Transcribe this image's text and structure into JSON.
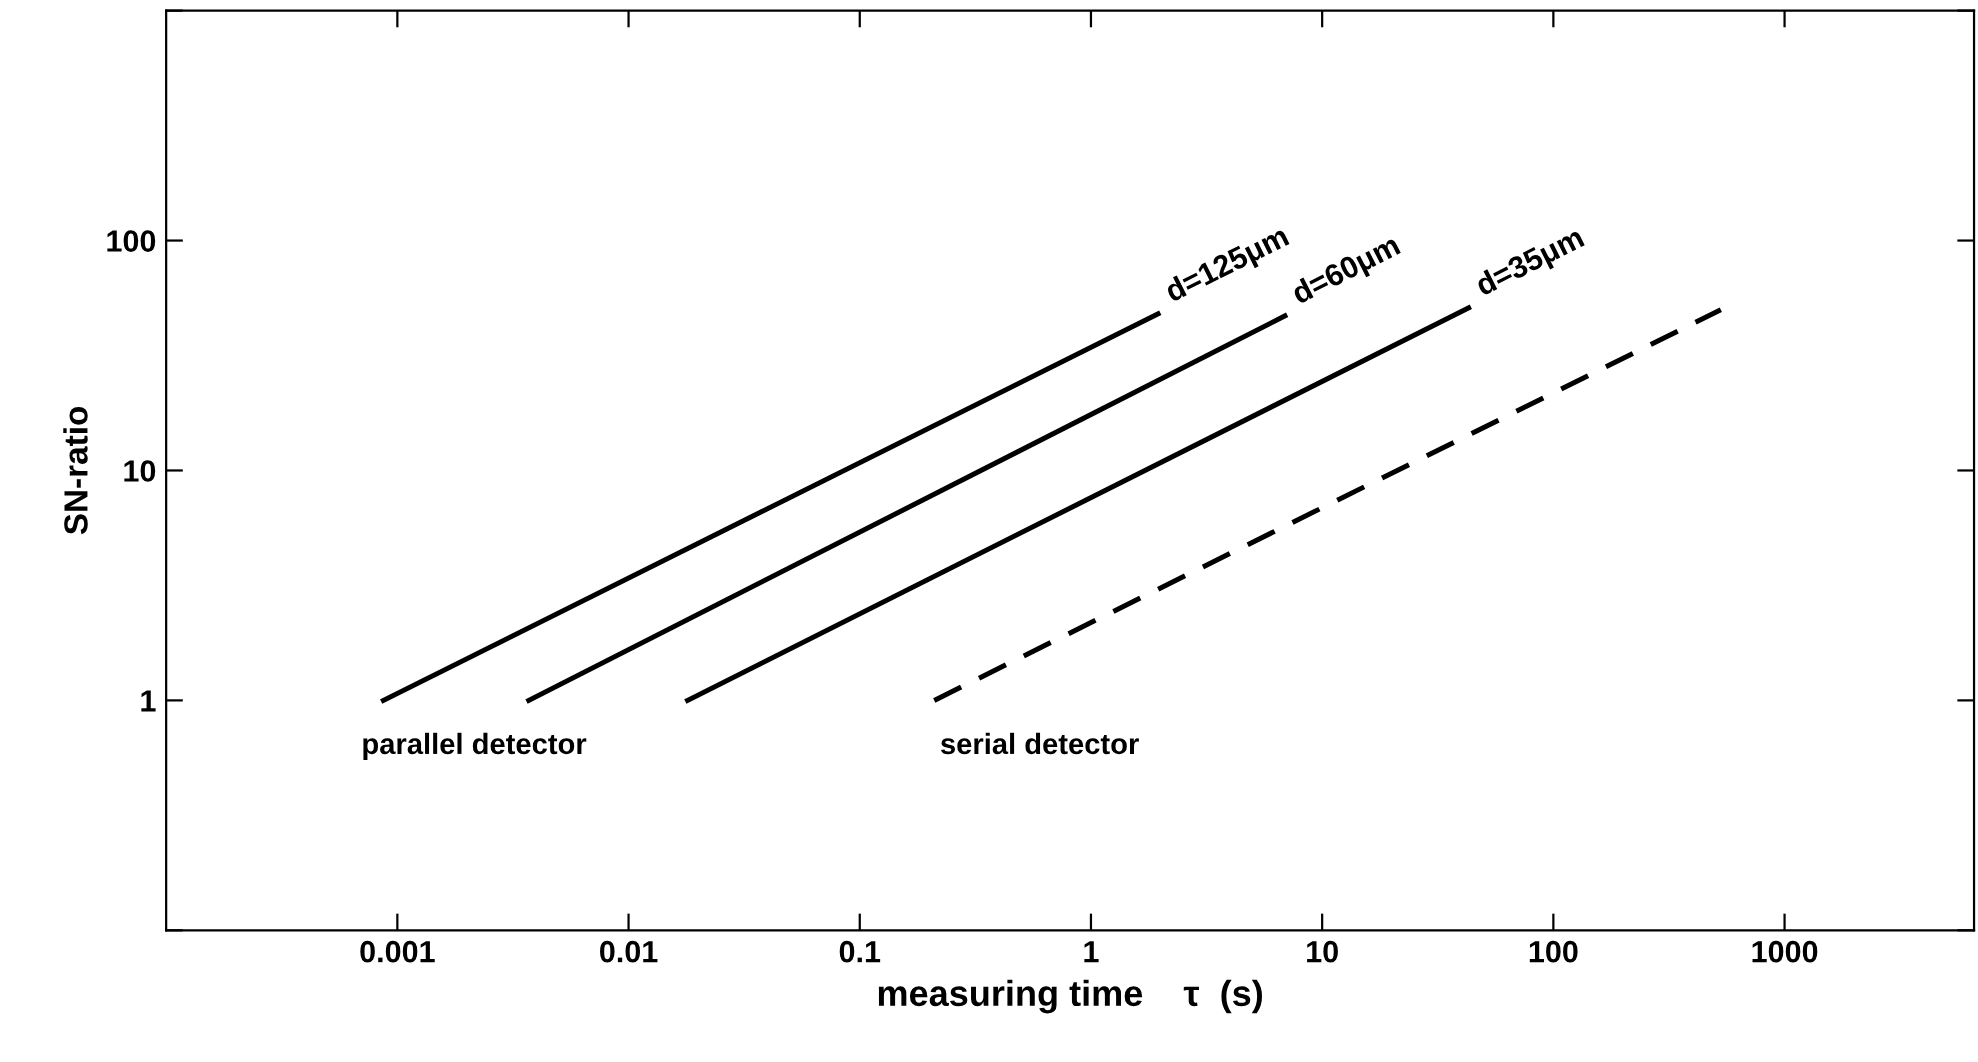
{
  "chart_data": {
    "type": "line",
    "xlabel": "measuring time    τ  (s)",
    "ylabel": "SN-ratio",
    "log": "xy",
    "xlim": [
      0.0001,
      6600
    ],
    "ylim": [
      0.1,
      1000
    ],
    "xticks": [
      0.001,
      0.01,
      0.1,
      1,
      10,
      100,
      1000
    ],
    "yticks": [
      {
        "value": 0.1,
        "label": null
      },
      1,
      10,
      100,
      {
        "value": 1000,
        "label": null
      }
    ],
    "grid": false,
    "legend": false,
    "marker": "none",
    "series": [
      {
        "name": "d=125μm",
        "color": "#000000",
        "line_style": "solid",
        "x": [
          0.00087,
          1.95
        ],
        "values": [
          1,
          48
        ]
      },
      {
        "name": "d=60μm",
        "color": "#000000",
        "line_style": "solid",
        "x": [
          0.0037,
          6.9
        ],
        "values": [
          1,
          47
        ]
      },
      {
        "name": "d=35μm",
        "color": "#000000",
        "line_style": "solid",
        "x": [
          0.018,
          43
        ],
        "values": [
          1,
          51
        ]
      },
      {
        "color": "#000000",
        "line_style": "dashed",
        "x": [
          0.21,
          530
        ],
        "values": [
          1,
          50
        ]
      }
    ],
    "annotations": [
      "parallel detector",
      "serial detector"
    ]
  }
}
